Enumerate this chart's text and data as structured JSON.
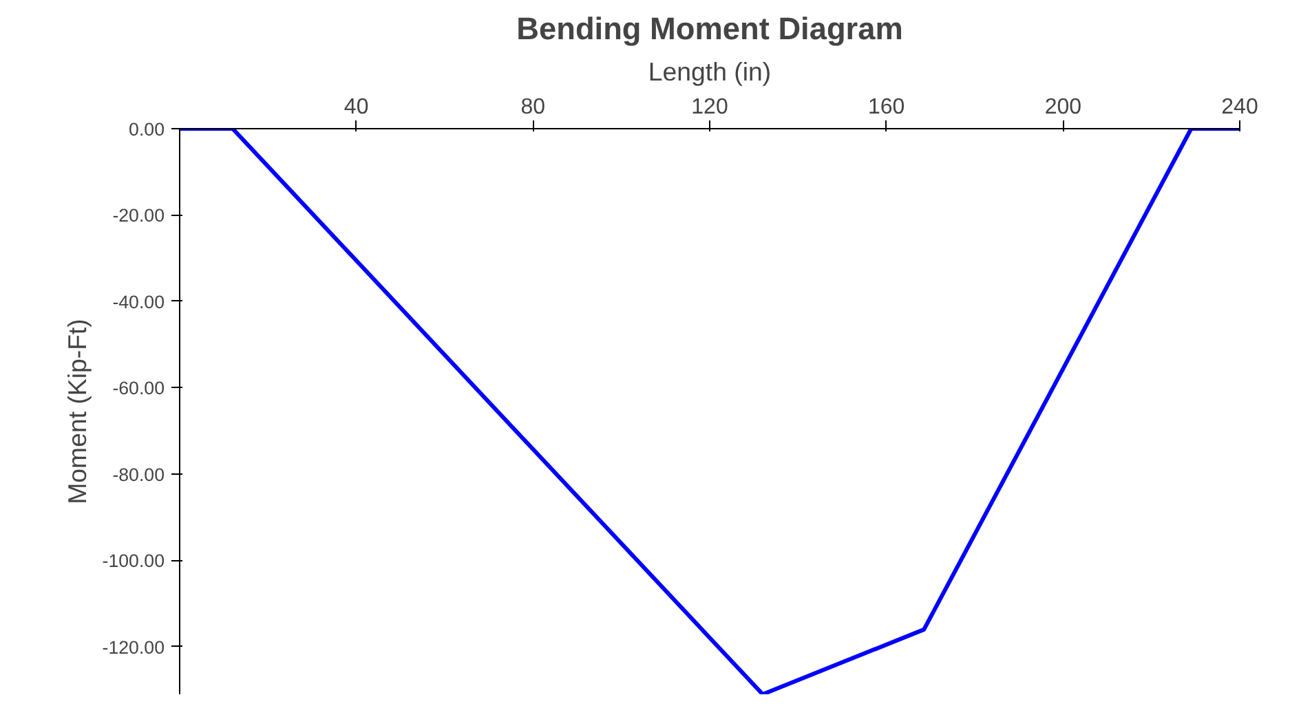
{
  "chart_data": {
    "type": "line",
    "title": "Bending Moment Diagram",
    "xlabel": "Length (in)",
    "ylabel": "Moment (Kip-Ft)",
    "x": [
      0,
      12,
      132,
      168.5,
      229,
      240
    ],
    "series": [
      {
        "color": "#0000ff",
        "values": [
          0,
          0,
          -131,
          -116,
          0,
          0
        ]
      }
    ],
    "xlim": [
      0,
      240
    ],
    "xticks": [
      40,
      80,
      120,
      160,
      200,
      240
    ],
    "ylim": [
      -131,
      0
    ],
    "yticks": [
      {
        "value": 0,
        "label": "0.00"
      },
      {
        "value": -20,
        "label": "-20.00"
      },
      {
        "value": -40,
        "label": "-40.00"
      },
      {
        "value": -60,
        "label": "-60.00"
      },
      {
        "value": -80,
        "label": "-80.00"
      },
      {
        "value": -100,
        "label": "-100.00"
      },
      {
        "value": -120,
        "label": "-120.00"
      }
    ],
    "grid": false,
    "marker": "none",
    "line_style": "solid"
  }
}
